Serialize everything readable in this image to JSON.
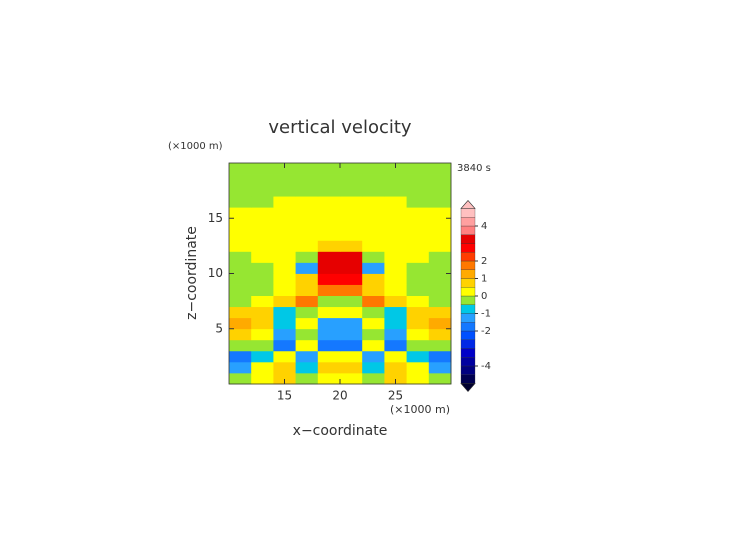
{
  "chart_data": {
    "type": "heatmap",
    "title": "vertical velocity",
    "time_label": "3840 s",
    "x_label": "x−coordinate",
    "y_label": "z−coordinate",
    "x_unit": "(×1000 m)",
    "y_unit": "(×1000 m)",
    "xlim": [
      10,
      30
    ],
    "ylim": [
      0,
      20
    ],
    "xticks": [
      15,
      20,
      25
    ],
    "yticks": [
      5,
      10,
      15
    ],
    "x": [
      11,
      13,
      15,
      17,
      19,
      21,
      23,
      25,
      27,
      29
    ],
    "y": [
      0.5,
      1.5,
      2.5,
      3.5,
      4.5,
      5.5,
      6.5,
      7.5,
      8.5,
      9.5,
      10.5,
      11.5,
      12.5,
      13.5,
      14.5,
      15.5,
      16.5,
      17.5,
      18.5,
      19.5
    ],
    "z": [
      [
        -0.5,
        0.3,
        0.8,
        -0.3,
        0.4,
        0.4,
        -0.3,
        0.8,
        0.3,
        -0.5
      ],
      [
        -1.4,
        0.2,
        0.6,
        -0.6,
        0.7,
        0.7,
        -0.6,
        0.6,
        0.2,
        -1.4
      ],
      [
        -1.6,
        -0.6,
        0.3,
        -1.2,
        0.4,
        0.4,
        -1.2,
        0.3,
        -0.6,
        -1.6
      ],
      [
        -0.2,
        -0.2,
        -1.6,
        0.2,
        -1.8,
        -1.8,
        0.2,
        -1.6,
        -0.2,
        -0.2
      ],
      [
        0.8,
        0.2,
        -1.4,
        -0.3,
        -1.5,
        -1.5,
        -0.3,
        -1.4,
        0.2,
        0.8
      ],
      [
        1.2,
        0.6,
        -0.7,
        0.3,
        -1.2,
        -1.2,
        0.3,
        -0.7,
        0.6,
        1.2
      ],
      [
        0.6,
        0.8,
        -0.8,
        -0.3,
        0.3,
        0.3,
        -0.3,
        -0.8,
        0.8,
        0.6
      ],
      [
        -0.2,
        0.2,
        0.8,
        1.6,
        -0.3,
        -0.3,
        1.6,
        0.8,
        0.2,
        -0.2
      ],
      [
        -0.2,
        -0.2,
        0.3,
        0.8,
        1.6,
        1.6,
        0.8,
        0.3,
        -0.2,
        -0.2
      ],
      [
        -0.2,
        -0.2,
        0.2,
        0.6,
        2.6,
        2.6,
        0.6,
        0.2,
        -0.2,
        -0.2
      ],
      [
        -0.2,
        -0.2,
        0.2,
        -1.2,
        3.3,
        3.3,
        -1.2,
        0.2,
        -0.2,
        -0.2
      ],
      [
        -0.2,
        0.2,
        0.2,
        -0.5,
        3.2,
        3.2,
        -0.5,
        0.2,
        0.2,
        -0.2
      ],
      [
        0.2,
        0.2,
        0.2,
        0.3,
        0.6,
        0.6,
        0.3,
        0.2,
        0.2,
        0.2
      ],
      [
        0.2,
        0.2,
        0.2,
        0.2,
        0.2,
        0.2,
        0.2,
        0.2,
        0.2,
        0.2
      ],
      [
        0.2,
        0.2,
        0.2,
        0.2,
        0.2,
        0.2,
        0.2,
        0.2,
        0.2,
        0.2
      ],
      [
        0.2,
        0.2,
        0.2,
        0.2,
        0.2,
        0.2,
        0.2,
        0.2,
        0.2,
        0.2
      ],
      [
        -0.2,
        -0.2,
        0.1,
        0.2,
        0.2,
        0.2,
        0.2,
        0.1,
        -0.2,
        -0.2
      ],
      [
        -0.2,
        -0.2,
        -0.2,
        -0.2,
        -0.2,
        -0.2,
        -0.2,
        -0.2,
        -0.2,
        -0.2
      ],
      [
        -0.2,
        -0.2,
        -0.2,
        -0.2,
        -0.2,
        -0.2,
        -0.2,
        -0.2,
        -0.2,
        -0.2
      ],
      [
        -0.2,
        -0.2,
        -0.2,
        -0.2,
        -0.2,
        -0.2,
        -0.2,
        -0.2,
        -0.2,
        -0.2
      ]
    ],
    "colorbar": {
      "levels": [
        -5,
        -4.5,
        -4,
        -3.5,
        -3,
        -2.5,
        -2,
        -1.5,
        -1,
        -0.5,
        0,
        0.5,
        1,
        1.5,
        2,
        2.5,
        3,
        3.5,
        4,
        4.5,
        5
      ],
      "colors": [
        "#000050",
        "#000080",
        "#0000a0",
        "#0000c8",
        "#0028e6",
        "#0050ff",
        "#1478ff",
        "#28a0ff",
        "#00c8e6",
        "#96e632",
        "#ffff00",
        "#ffd200",
        "#ffaa00",
        "#ff7800",
        "#ff3c00",
        "#ff0000",
        "#e60000",
        "#ff8080",
        "#ffa0a0",
        "#ffc0c0"
      ],
      "ticks": [
        4,
        2,
        1,
        0,
        -1,
        -2,
        -4
      ]
    }
  }
}
